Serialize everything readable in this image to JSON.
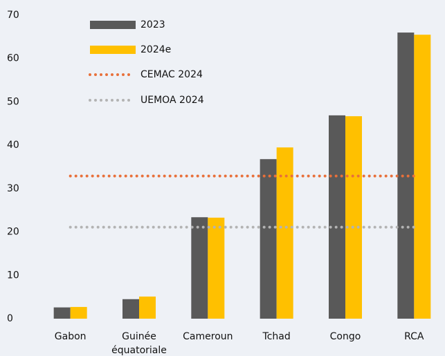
{
  "chart_data": {
    "type": "bar",
    "categories": [
      "Gabon",
      "Guinée équatoriale",
      "Cameroun",
      "Tchad",
      "Congo",
      "RCA"
    ],
    "series": [
      {
        "name": "2023",
        "color": "#595959",
        "values": [
          2.6,
          4.5,
          23.4,
          36.8,
          46.9,
          66.0
        ]
      },
      {
        "name": "2024e",
        "color": "#ffc000",
        "values": [
          2.7,
          5.1,
          23.3,
          39.5,
          46.7,
          65.5
        ]
      }
    ],
    "reference_lines": [
      {
        "name": "CEMAC 2024",
        "color": "#e8703a",
        "value": 32.9
      },
      {
        "name": "UEMOA 2024",
        "color": "#b3b3b3",
        "value": 21.1
      }
    ],
    "ylim": [
      0,
      70
    ],
    "yticks": [
      0,
      10,
      20,
      30,
      40,
      50,
      60,
      70
    ],
    "grid": false
  }
}
